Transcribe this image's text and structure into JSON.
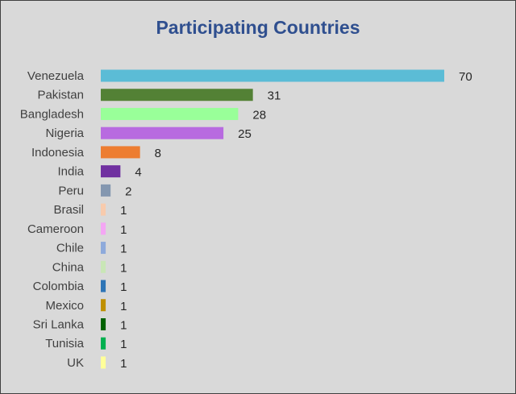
{
  "chart_data": {
    "type": "bar",
    "orientation": "horizontal",
    "title": "Participating Countries",
    "xlabel": "",
    "ylabel": "",
    "categories": [
      "Venezuela",
      "Pakistan",
      "Bangladesh",
      "Nigeria",
      "Indonesia",
      "India",
      "Peru",
      "Brasil",
      "Cameroon",
      "Chile",
      "China",
      "Colombia",
      "Mexico",
      "Sri Lanka",
      "Tunisia",
      "UK"
    ],
    "values": [
      70,
      31,
      28,
      25,
      8,
      4,
      2,
      1,
      1,
      1,
      1,
      1,
      1,
      1,
      1,
      1
    ],
    "colors": [
      "#5bbcd6",
      "#538135",
      "#99ff99",
      "#b86ae0",
      "#ed7d31",
      "#7030a0",
      "#8497b0",
      "#f8cbad",
      "#f4a6f4",
      "#8eaadb",
      "#c9e6b6",
      "#2e75b6",
      "#bf9000",
      "#006100",
      "#00b050",
      "#ffff99"
    ],
    "xlim": [
      0,
      70
    ],
    "data_labels": true,
    "grid": false,
    "legend": "none",
    "background": "#d9d9d9",
    "title_color": "#2f4f8f"
  }
}
